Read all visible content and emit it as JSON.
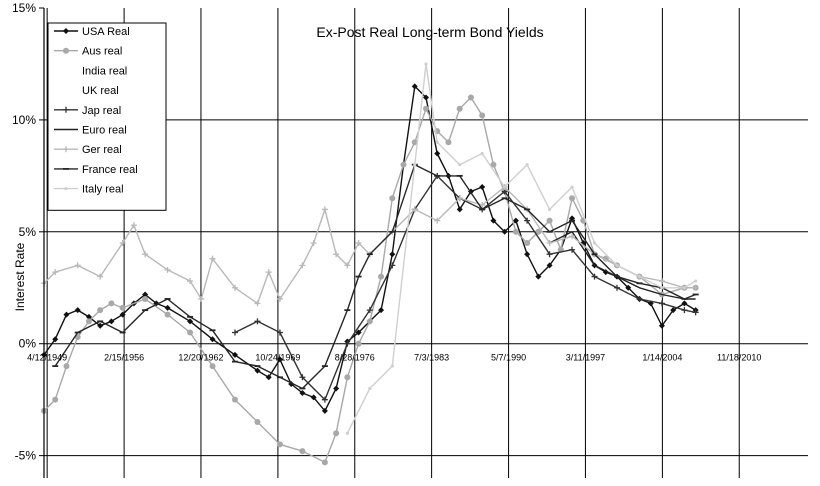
{
  "chart_data": {
    "type": "line",
    "title": "Ex-Post Real Long-term Bond Yields",
    "xlabel": "",
    "ylabel": "Interest Rate",
    "ylim": [
      -6,
      15
    ],
    "yticks": [
      {
        "value": 15,
        "label": "15%"
      },
      {
        "value": 10,
        "label": "10%"
      },
      {
        "value": 5,
        "label": "5%"
      },
      {
        "value": 0,
        "label": "0%"
      },
      {
        "value": -5,
        "label": "-5%"
      }
    ],
    "xlim": [
      1949,
      2017
    ],
    "xticks": [
      {
        "value": 1949.28,
        "label": "4/12/1949"
      },
      {
        "value": 1956.13,
        "label": "2/15/1956"
      },
      {
        "value": 1962.97,
        "label": "12/20/1962"
      },
      {
        "value": 1969.82,
        "label": "10/24/1969"
      },
      {
        "value": 1976.66,
        "label": "8/28/1976"
      },
      {
        "value": 1983.5,
        "label": "7/3/1983"
      },
      {
        "value": 1990.35,
        "label": "5/7/1990"
      },
      {
        "value": 1997.19,
        "label": "3/11/1997"
      },
      {
        "value": 2004.04,
        "label": "1/14/2004"
      },
      {
        "value": 2010.88,
        "label": "11/18/2010"
      }
    ],
    "grid": {
      "vertical": true,
      "horizontal": true
    },
    "legend_position": "top-left",
    "series": [
      {
        "name": "USA Real",
        "color": "#111111",
        "marker": "diamond",
        "x": [
          1949,
          1950,
          1951,
          1952,
          1953,
          1954,
          1955,
          1956,
          1957,
          1958,
          1959,
          1960,
          1962,
          1964,
          1966,
          1968,
          1969,
          1970,
          1971,
          1972,
          1973,
          1974,
          1975,
          1976,
          1977,
          1978,
          1979,
          1980,
          1981,
          1982,
          1983,
          1984,
          1985,
          1986,
          1987,
          1988,
          1989,
          1990,
          1991,
          1992,
          1993,
          1994,
          1995,
          1996,
          1997,
          1998,
          1999,
          2000,
          2001,
          2002,
          2003,
          2004,
          2005,
          2006,
          2007
        ],
        "y": [
          -0.5,
          0.2,
          1.3,
          1.5,
          1.2,
          0.8,
          1,
          1.3,
          1.8,
          2.2,
          1.8,
          1.6,
          1,
          0.2,
          -0.5,
          -1.2,
          -1.5,
          -0.7,
          -1.8,
          -2.2,
          -2.4,
          -3,
          -2,
          0.1,
          0.5,
          1,
          1.5,
          4,
          8,
          11.5,
          11,
          8.5,
          7.5,
          6,
          6.8,
          7,
          5.5,
          5,
          5.5,
          4,
          3,
          3.5,
          4.2,
          5.6,
          4.5,
          3.5,
          3.2,
          3,
          2.5,
          2,
          1.8,
          0.8,
          1.5,
          1.8,
          1.5
        ]
      },
      {
        "name": "Aus real",
        "color": "#a8a8a8",
        "marker": "circle",
        "x": [
          1949,
          1950,
          1951,
          1952,
          1953,
          1954,
          1955,
          1956,
          1958,
          1960,
          1962,
          1964,
          1966,
          1968,
          1970,
          1972,
          1974,
          1975,
          1976,
          1977,
          1978,
          1979,
          1980,
          1981,
          1982,
          1983,
          1984,
          1985,
          1986,
          1987,
          1988,
          1989,
          1990,
          1991,
          1992,
          1993,
          1994,
          1995,
          1996,
          1997,
          1998,
          1999,
          2000,
          2002,
          2004,
          2006,
          2007
        ],
        "y": [
          -3,
          -2.5,
          -1,
          0.3,
          1,
          1.5,
          1.8,
          1.6,
          2,
          1.3,
          0.5,
          -1,
          -2.5,
          -3.5,
          -4.5,
          -4.8,
          -5.3,
          -4,
          -1.5,
          0,
          1,
          3,
          6.5,
          8,
          9,
          10.5,
          9.5,
          9,
          10.5,
          11,
          10.2,
          8,
          6.8,
          5,
          4.5,
          5,
          5.5,
          4.2,
          6.5,
          5.5,
          4,
          3.8,
          3.5,
          3,
          2.2,
          2.5,
          2.5
        ]
      },
      {
        "name": "India real",
        "color": "#ffffff",
        "marker": "none",
        "x": [],
        "y": []
      },
      {
        "name": "UK real",
        "color": "#ffffff",
        "marker": "none",
        "x": [],
        "y": []
      },
      {
        "name": "Jap real",
        "color": "#333333",
        "marker": "star",
        "x": [
          1966,
          1968,
          1970,
          1972,
          1974,
          1976,
          1978,
          1980,
          1982,
          1984,
          1986,
          1988,
          1990,
          1992,
          1994,
          1996,
          1998,
          2000,
          2002,
          2004,
          2006,
          2007
        ],
        "y": [
          0.5,
          1,
          0.5,
          -1.5,
          -2.5,
          0,
          1.5,
          3.5,
          6,
          7.5,
          6.5,
          6,
          6.8,
          5.5,
          4,
          4.2,
          3,
          2.5,
          2,
          1.8,
          1.5,
          1.4
        ]
      },
      {
        "name": "Euro real",
        "color": "#222222",
        "marker": "none",
        "x": [
          1994,
          1996,
          1998,
          2000,
          2002,
          2004,
          2006,
          2007
        ],
        "y": [
          4.5,
          5,
          3.5,
          3,
          2.5,
          2.2,
          2,
          2
        ]
      },
      {
        "name": "Ger real",
        "color": "#b8b8b8",
        "marker": "plus",
        "x": [
          1949,
          1950,
          1952,
          1954,
          1956,
          1957,
          1958,
          1960,
          1962,
          1963,
          1964,
          1966,
          1968,
          1969,
          1970,
          1972,
          1973,
          1974,
          1975,
          1976,
          1977,
          1978,
          1980,
          1982,
          1984,
          1986,
          1988,
          1990,
          1992,
          1994,
          1996,
          1998,
          2000,
          2002,
          2004,
          2006,
          2007
        ],
        "y": [
          2.7,
          3.2,
          3.5,
          3,
          4.5,
          5.3,
          4,
          3.3,
          2.8,
          2,
          3.8,
          2.5,
          1.8,
          3.2,
          2,
          3.5,
          4.5,
          6,
          4,
          3.5,
          4.5,
          4,
          5,
          6,
          5.5,
          6.5,
          6.2,
          7,
          6,
          4.5,
          4.8,
          4,
          3.5,
          3,
          2.8,
          2.5,
          2.5
        ]
      },
      {
        "name": "France real",
        "color": "#262626",
        "marker": "dash",
        "x": [
          1950,
          1952,
          1954,
          1956,
          1958,
          1960,
          1962,
          1964,
          1966,
          1968,
          1970,
          1972,
          1974,
          1976,
          1977,
          1978,
          1980,
          1982,
          1984,
          1986,
          1988,
          1990,
          1992,
          1994,
          1996,
          1998,
          2000,
          2002,
          2004,
          2006,
          2007
        ],
        "y": [
          -1,
          0.5,
          1,
          0.5,
          1.5,
          2,
          1.2,
          0.6,
          -0.8,
          -1,
          -1.5,
          -2,
          -1,
          1.5,
          3,
          4,
          5,
          8,
          7.5,
          7.5,
          6,
          6.5,
          6,
          5,
          5.5,
          4,
          3,
          2.7,
          2.5,
          2,
          2.2
        ]
      },
      {
        "name": "Italy real",
        "color": "#cfcfcf",
        "marker": "dot",
        "x": [
          1976,
          1978,
          1980,
          1982,
          1983,
          1984,
          1986,
          1988,
          1990,
          1992,
          1994,
          1996,
          1998,
          2000,
          2002,
          2004,
          2006,
          2007
        ],
        "y": [
          -4,
          -2,
          -1,
          8,
          12.5,
          9,
          8,
          8.5,
          7,
          8,
          6,
          7,
          4.5,
          3.5,
          3,
          2.5,
          2.5,
          2.8
        ]
      }
    ]
  }
}
